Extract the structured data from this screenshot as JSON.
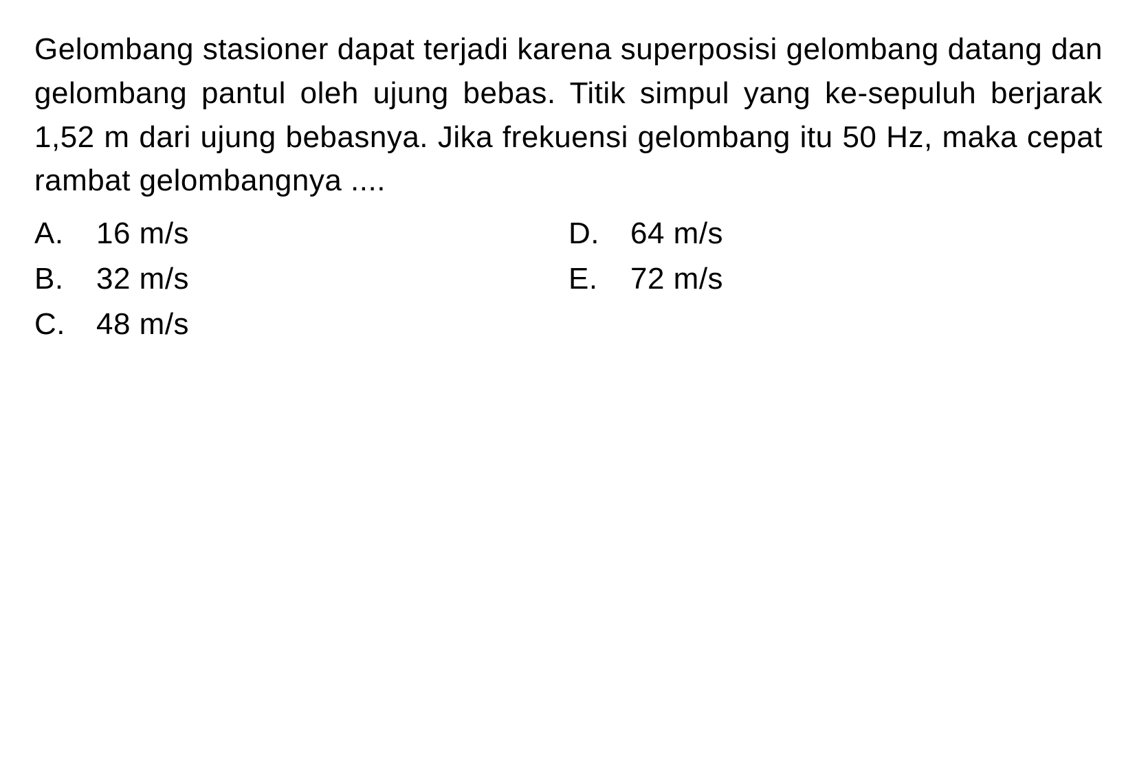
{
  "question": {
    "text": "Gelombang stasioner dapat terjadi karena superposisi gelombang datang dan gelombang pantul oleh ujung bebas. Titik simpul yang ke-sepuluh berjarak 1,52 m dari ujung bebasnya. Jika frekuensi gelombang itu 50 Hz, maka cepat rambat gelombangnya ...."
  },
  "options": {
    "a": {
      "label": "A.",
      "value": "16 m/s"
    },
    "b": {
      "label": "B.",
      "value": "32 m/s"
    },
    "c": {
      "label": "C.",
      "value": "48 m/s"
    },
    "d": {
      "label": "D.",
      "value": "64 m/s"
    },
    "e": {
      "label": "E.",
      "value": "72 m/s"
    }
  },
  "styling": {
    "background_color": "#ffffff",
    "text_color": "#000000",
    "font_size": 44,
    "line_height": 1.45,
    "font_family": "Arial"
  }
}
